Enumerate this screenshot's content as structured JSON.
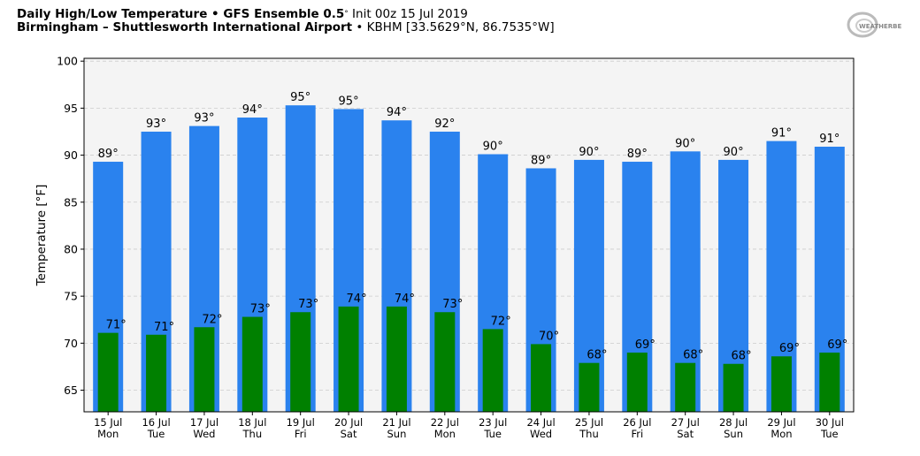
{
  "header": {
    "title_bold": "Daily High/Low Temperature • GFS Ensemble 0.5",
    "title_deg": "°",
    "title_init": " Init 00z 15 Jul 2019",
    "station_bold": "Birmingham – Shuttlesworth International Airport",
    "station_rest": " • KBHM [33.5629°N, 86.7535°W]"
  },
  "logo": {
    "text": "WeatherBELL"
  },
  "colors": {
    "high": "#2a82ee",
    "low": "#008000",
    "plot_bg": "#f4f4f4"
  },
  "chart_data": {
    "type": "bar",
    "title": "Daily High/Low Temperature • GFS Ensemble 0.5° Init 00z 15 Jul 2019",
    "xlabel": "",
    "ylabel": "Temperature [°F]",
    "ylim": [
      62.7,
      100.3
    ],
    "yticks": [
      65,
      70,
      75,
      80,
      85,
      90,
      95,
      100
    ],
    "grid": true,
    "categories": [
      [
        "15 Jul",
        "Mon"
      ],
      [
        "16 Jul",
        "Tue"
      ],
      [
        "17 Jul",
        "Wed"
      ],
      [
        "18 Jul",
        "Thu"
      ],
      [
        "19 Jul",
        "Fri"
      ],
      [
        "20 Jul",
        "Sat"
      ],
      [
        "21 Jul",
        "Sun"
      ],
      [
        "22 Jul",
        "Mon"
      ],
      [
        "23 Jul",
        "Tue"
      ],
      [
        "24 Jul",
        "Wed"
      ],
      [
        "25 Jul",
        "Thu"
      ],
      [
        "26 Jul",
        "Fri"
      ],
      [
        "27 Jul",
        "Sat"
      ],
      [
        "28 Jul",
        "Sun"
      ],
      [
        "29 Jul",
        "Mon"
      ],
      [
        "30 Jul",
        "Tue"
      ]
    ],
    "series": [
      {
        "name": "High",
        "values": [
          89.3,
          92.5,
          93.1,
          94.0,
          95.3,
          94.9,
          93.7,
          92.5,
          90.1,
          88.6,
          89.5,
          89.3,
          90.4,
          89.5,
          91.5,
          90.9
        ],
        "labels": [
          "89°",
          "93°",
          "93°",
          "94°",
          "95°",
          "95°",
          "94°",
          "92°",
          "90°",
          "89°",
          "90°",
          "89°",
          "90°",
          "90°",
          "91°",
          "91°"
        ]
      },
      {
        "name": "Low",
        "values": [
          71.1,
          70.9,
          71.7,
          72.8,
          73.3,
          73.9,
          73.9,
          73.3,
          71.5,
          69.9,
          67.9,
          69.0,
          67.9,
          67.8,
          68.6,
          69.0
        ],
        "labels": [
          "71°",
          "71°",
          "72°",
          "73°",
          "73°",
          "74°",
          "74°",
          "73°",
          "72°",
          "70°",
          "68°",
          "69°",
          "68°",
          "68°",
          "69°",
          "69°"
        ]
      }
    ]
  }
}
